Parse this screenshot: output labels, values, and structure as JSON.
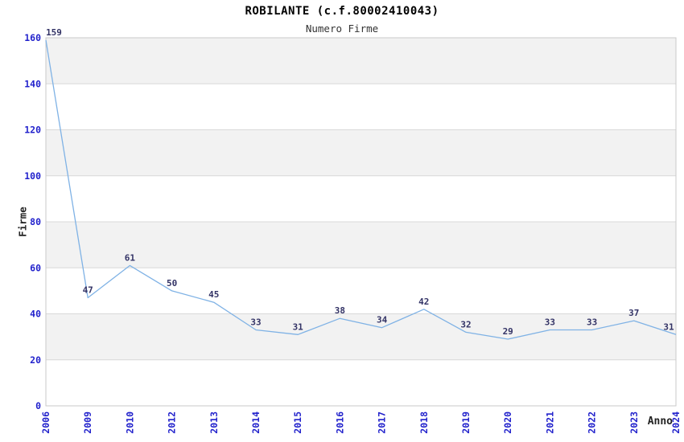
{
  "chart_data": {
    "type": "line",
    "title": "ROBILANTE (c.f.80002410043)",
    "subtitle": "Numero Firme",
    "xlabel": "Anno",
    "ylabel": "Firme",
    "categories": [
      "2006",
      "2009",
      "2010",
      "2012",
      "2013",
      "2014",
      "2015",
      "2016",
      "2017",
      "2018",
      "2019",
      "2020",
      "2021",
      "2022",
      "2023",
      "2024"
    ],
    "values": [
      159,
      47,
      61,
      50,
      45,
      33,
      31,
      38,
      34,
      42,
      32,
      29,
      33,
      33,
      37,
      31
    ],
    "ylim": [
      0,
      160
    ],
    "ytick_step": 20,
    "grid": true,
    "legend_position": "none",
    "colors": {
      "line": "#7fb2e5",
      "tick_label": "#2222cc",
      "data_label": "#333366",
      "band": "#f2f2f2",
      "grid": "#d8d8d8",
      "border": "#c9c9c9",
      "title": "#000000",
      "subtitle": "#333333",
      "axis_label": "#222222"
    }
  }
}
